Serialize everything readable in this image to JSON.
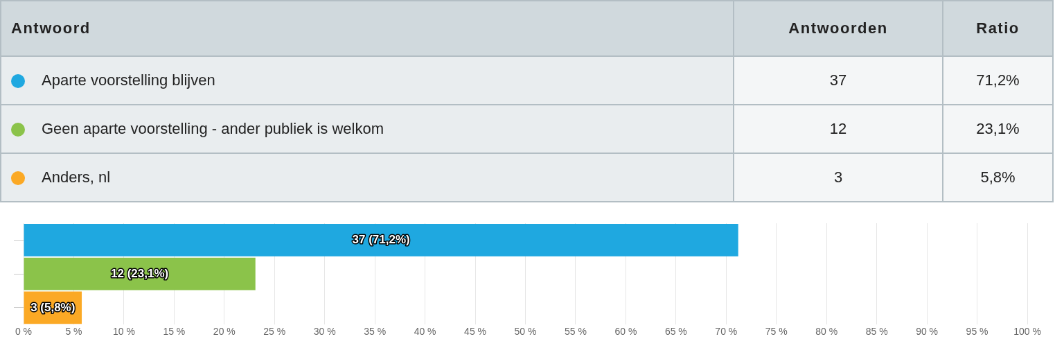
{
  "chart_data": {
    "type": "bar",
    "orientation": "horizontal",
    "stacked": true,
    "categories": [
      null,
      null,
      null
    ],
    "series": [
      {
        "name": "Aparte voorstelling blijven",
        "color": "#1fa8e0",
        "values": [
          71.2,
          null,
          null
        ],
        "value_labels": [
          "37 (71,2%)",
          null,
          null
        ]
      },
      {
        "name": "Geen aparte voorstelling - ander publiek is welkom",
        "color": "#8bc34a",
        "values": [
          null,
          23.1,
          null
        ],
        "value_labels": [
          null,
          "12 (23,1%)",
          null
        ]
      },
      {
        "name": "Anders, nl",
        "color": "#fba925",
        "values": [
          null,
          null,
          5.8
        ],
        "value_labels": [
          null,
          null,
          "3 (5,8%)"
        ]
      }
    ],
    "xlim": [
      0,
      100
    ],
    "xticks": [
      {
        "value": 0,
        "label": "0 %"
      },
      {
        "value": 5,
        "label": "5 %"
      },
      {
        "value": 10,
        "label": "10 %"
      },
      {
        "value": 15,
        "label": "15 %"
      },
      {
        "value": 20,
        "label": "20 %"
      },
      {
        "value": 25,
        "label": "25 %"
      },
      {
        "value": 30,
        "label": "30 %"
      },
      {
        "value": 35,
        "label": "35 %"
      },
      {
        "value": 40,
        "label": "40 %"
      },
      {
        "value": 45,
        "label": "45 %"
      },
      {
        "value": 50,
        "label": "50 %"
      },
      {
        "value": 55,
        "label": "55 %"
      },
      {
        "value": 60,
        "label": "60 %"
      },
      {
        "value": 65,
        "label": "65 %"
      },
      {
        "value": 70,
        "label": "70 %"
      },
      {
        "value": 75,
        "label": "75 %"
      },
      {
        "value": 80,
        "label": "80 %"
      },
      {
        "value": 85,
        "label": "85 %"
      },
      {
        "value": 90,
        "label": "90 %"
      },
      {
        "value": 95,
        "label": "95 %"
      },
      {
        "value": 100,
        "label": "100 %"
      }
    ],
    "grid": "x",
    "legend": "top",
    "tick_labels": "x",
    "annotations": [
      "Antwoord",
      "Antwoorden",
      "Ratio",
      "37",
      "71,2%",
      "12",
      "23,1%",
      "3",
      "5,8%"
    ]
  }
}
